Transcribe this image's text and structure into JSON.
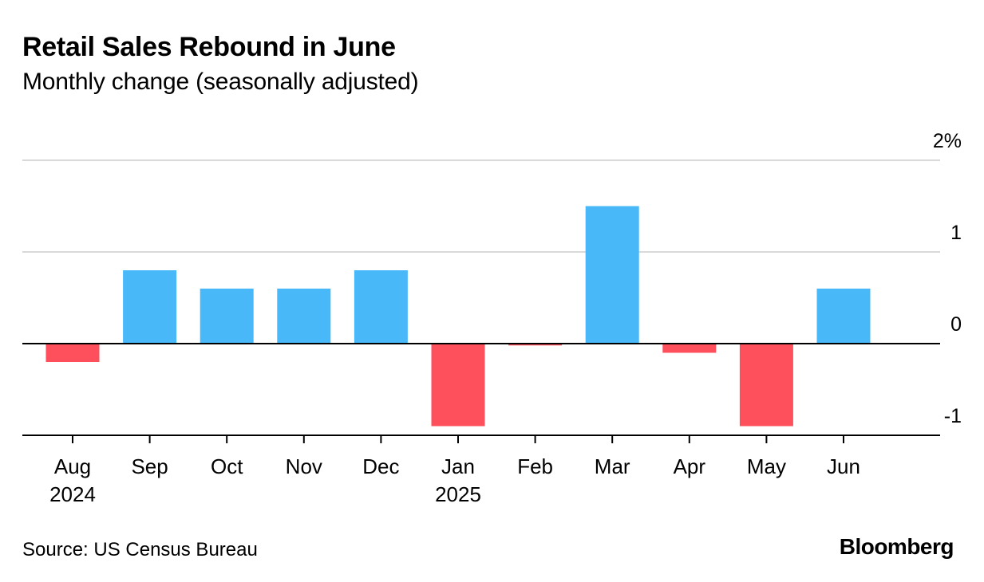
{
  "title": "Retail Sales Rebound in June",
  "subtitle": "Monthly change (seasonally adjusted)",
  "source": "Source: US Census Bureau",
  "brand": "Bloomberg",
  "colors": {
    "positive": "#48b8f9",
    "negative": "#fd505c",
    "grid": "#d9d9d9",
    "axis": "#000000"
  },
  "chart_data": {
    "type": "bar",
    "categories": [
      "Aug",
      "Sep",
      "Oct",
      "Nov",
      "Dec",
      "Jan",
      "Feb",
      "Mar",
      "Apr",
      "May",
      "Jun"
    ],
    "category_sublabels": [
      "2024",
      "",
      "",
      "",
      "",
      "2025",
      "",
      "",
      "",
      "",
      ""
    ],
    "values": [
      -0.2,
      0.8,
      0.6,
      0.6,
      0.8,
      -0.9,
      -0.02,
      1.5,
      -0.1,
      -0.9,
      0.6
    ],
    "ylim": [
      -1,
      2
    ],
    "yticks": [
      {
        "value": 2,
        "label": "2%"
      },
      {
        "value": 1,
        "label": "1"
      },
      {
        "value": 0,
        "label": "0"
      },
      {
        "value": -1,
        "label": "-1"
      }
    ],
    "grid": true,
    "y_axis_side": "right",
    "legend": "none",
    "xlabel": "",
    "ylabel": ""
  }
}
